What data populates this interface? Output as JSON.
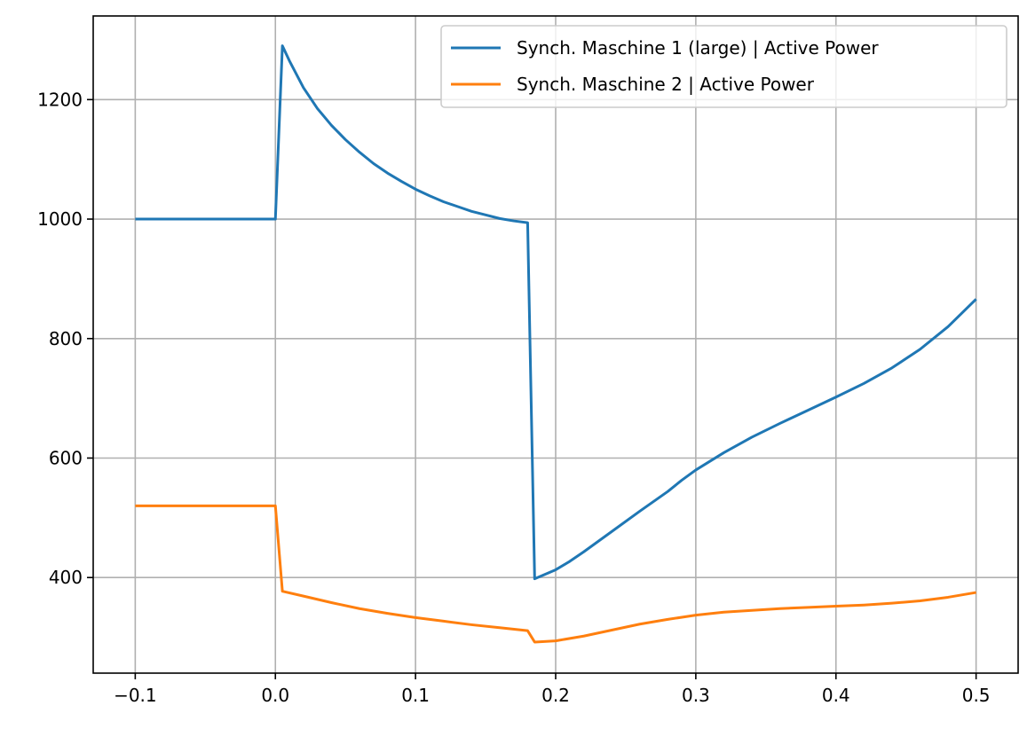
{
  "chart_data": {
    "type": "line",
    "title": "",
    "xlabel": "",
    "ylabel": "",
    "xlim": [
      -0.13,
      0.53
    ],
    "ylim": [
      240,
      1340
    ],
    "grid": true,
    "legend_position": "top-right",
    "x_ticks": [
      -0.1,
      0.0,
      0.1,
      0.2,
      0.3,
      0.4,
      0.5
    ],
    "x_tick_labels": [
      "−0.1",
      "0.0",
      "0.1",
      "0.2",
      "0.3",
      "0.4",
      "0.5"
    ],
    "y_ticks": [
      400,
      600,
      800,
      1000,
      1200
    ],
    "y_tick_labels": [
      "400",
      "600",
      "800",
      "1000",
      "1200"
    ],
    "series": [
      {
        "name": "Synch. Maschine 1 (large) | Active Power",
        "color": "#1f77b4",
        "points": [
          [
            -0.1,
            1000
          ],
          [
            0.0,
            1000
          ],
          [
            0.005,
            1290
          ],
          [
            0.01,
            1265
          ],
          [
            0.02,
            1220
          ],
          [
            0.03,
            1185
          ],
          [
            0.04,
            1157
          ],
          [
            0.05,
            1133
          ],
          [
            0.06,
            1112
          ],
          [
            0.07,
            1093
          ],
          [
            0.08,
            1077
          ],
          [
            0.09,
            1063
          ],
          [
            0.1,
            1050
          ],
          [
            0.11,
            1039
          ],
          [
            0.12,
            1029
          ],
          [
            0.13,
            1021
          ],
          [
            0.14,
            1013
          ],
          [
            0.15,
            1007
          ],
          [
            0.16,
            1001
          ],
          [
            0.17,
            997
          ],
          [
            0.18,
            994
          ],
          [
            0.185,
            398
          ],
          [
            0.2,
            413
          ],
          [
            0.21,
            427
          ],
          [
            0.22,
            443
          ],
          [
            0.24,
            477
          ],
          [
            0.26,
            511
          ],
          [
            0.28,
            544
          ],
          [
            0.29,
            563
          ],
          [
            0.3,
            580
          ],
          [
            0.32,
            609
          ],
          [
            0.34,
            635
          ],
          [
            0.36,
            658
          ],
          [
            0.38,
            680
          ],
          [
            0.4,
            702
          ],
          [
            0.42,
            725
          ],
          [
            0.44,
            751
          ],
          [
            0.46,
            782
          ],
          [
            0.48,
            820
          ],
          [
            0.5,
            866
          ]
        ]
      },
      {
        "name": "Synch. Maschine 2 | Active Power",
        "color": "#ff7f0e",
        "points": [
          [
            -0.1,
            520
          ],
          [
            0.0,
            520
          ],
          [
            0.005,
            377
          ],
          [
            0.02,
            369
          ],
          [
            0.04,
            358
          ],
          [
            0.06,
            348
          ],
          [
            0.08,
            340
          ],
          [
            0.1,
            333
          ],
          [
            0.12,
            327
          ],
          [
            0.14,
            321
          ],
          [
            0.16,
            316
          ],
          [
            0.18,
            311
          ],
          [
            0.185,
            292
          ],
          [
            0.2,
            294
          ],
          [
            0.22,
            302
          ],
          [
            0.24,
            312
          ],
          [
            0.26,
            322
          ],
          [
            0.28,
            330
          ],
          [
            0.3,
            337
          ],
          [
            0.32,
            342
          ],
          [
            0.34,
            345
          ],
          [
            0.36,
            348
          ],
          [
            0.38,
            350
          ],
          [
            0.4,
            352
          ],
          [
            0.42,
            354
          ],
          [
            0.44,
            357
          ],
          [
            0.46,
            361
          ],
          [
            0.48,
            367
          ],
          [
            0.5,
            375
          ]
        ]
      }
    ]
  }
}
